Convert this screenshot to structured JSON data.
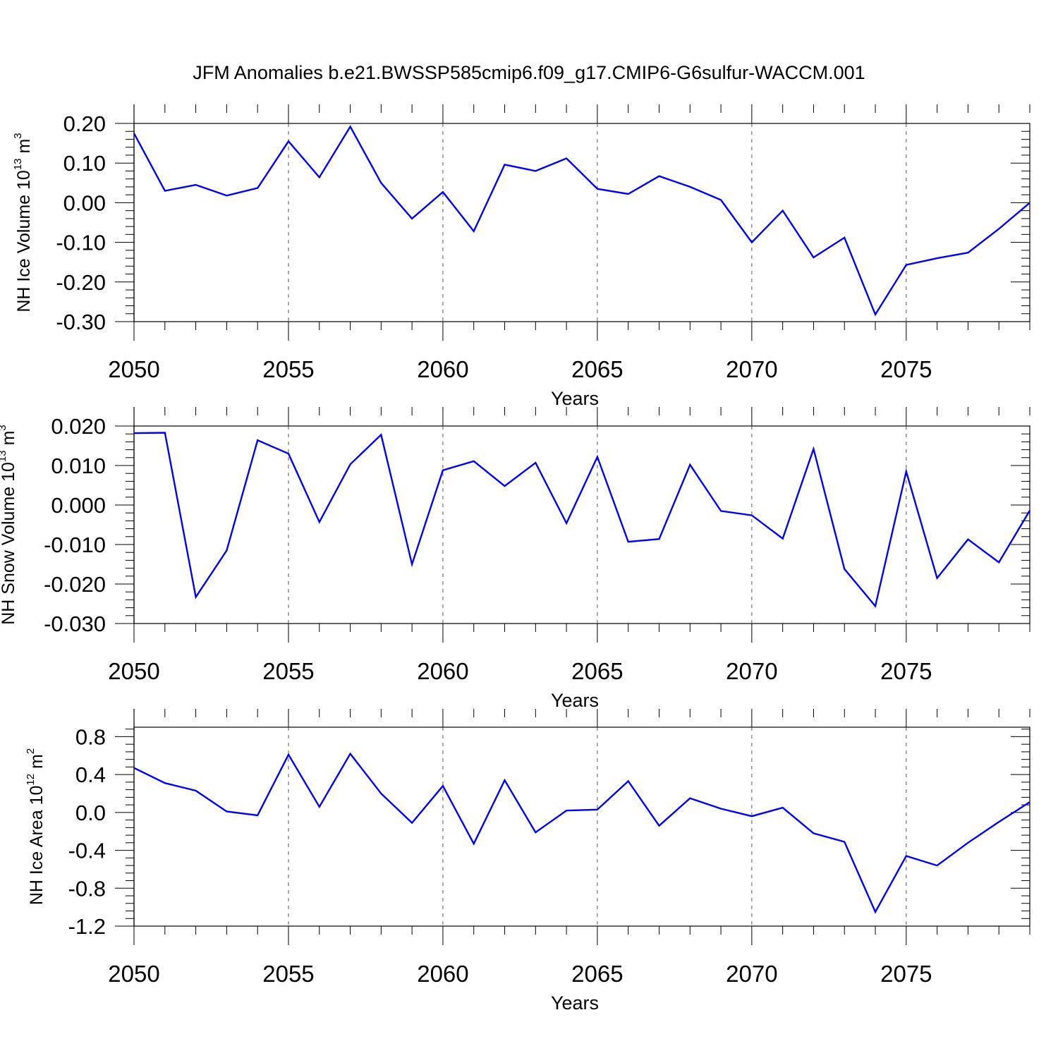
{
  "chart_data": {
    "title": "JFM Anomalies b.e21.BWSSP585cmip6.f09_g17.CMIP6-G6sulfur-WACCM.001",
    "colors": {
      "line": "#0000ff",
      "axes": "#000000",
      "grid": "#555555"
    },
    "grid": "vertical dashed lines at major x ticks",
    "panels": [
      {
        "type": "line",
        "ylabel_main": "NH Ice Volume 10",
        "ylabel_exp": "13",
        "ylabel_unit": " m",
        "ylabel_unit_exp": "3",
        "xlabel": "Years",
        "xlim": [
          2050,
          2079
        ],
        "ylim": [
          -0.3,
          0.2
        ],
        "xticks": [
          "2050",
          "2055",
          "2060",
          "2065",
          "2070",
          "2075"
        ],
        "yticks": [
          "0.20",
          "0.10",
          "0.00",
          "-0.10",
          "-0.20",
          "-0.30"
        ],
        "x": [
          2050,
          2051,
          2052,
          2053,
          2054,
          2055,
          2056,
          2057,
          2058,
          2059,
          2060,
          2061,
          2062,
          2063,
          2064,
          2065,
          2066,
          2067,
          2068,
          2069,
          2070,
          2071,
          2072,
          2073,
          2074,
          2075,
          2076,
          2077,
          2078,
          2079
        ],
        "y": [
          0.175,
          0.03,
          0.045,
          0.018,
          0.037,
          0.155,
          0.064,
          0.192,
          0.05,
          -0.04,
          0.027,
          -0.072,
          0.096,
          0.08,
          0.112,
          0.035,
          0.022,
          0.067,
          0.04,
          0.007,
          -0.1,
          -0.02,
          -0.138,
          -0.088,
          -0.282,
          -0.157,
          -0.14,
          -0.126,
          -0.066,
          0.0
        ]
      },
      {
        "type": "line",
        "ylabel_main": "NH Snow Volume 10",
        "ylabel_exp": "13",
        "ylabel_unit": " m",
        "ylabel_unit_exp": "3",
        "xlabel": "Years",
        "xlim": [
          2050,
          2079
        ],
        "ylim": [
          -0.03,
          0.02
        ],
        "xticks": [
          "2050",
          "2055",
          "2060",
          "2065",
          "2070",
          "2075"
        ],
        "yticks": [
          "0.020",
          "0.010",
          "0.000",
          "-0.010",
          "-0.020",
          "-0.030"
        ],
        "x": [
          2050,
          2051,
          2052,
          2053,
          2054,
          2055,
          2056,
          2057,
          2058,
          2059,
          2060,
          2061,
          2062,
          2063,
          2064,
          2065,
          2066,
          2067,
          2068,
          2069,
          2070,
          2071,
          2072,
          2073,
          2074,
          2075,
          2076,
          2077,
          2078,
          2079
        ],
        "y": [
          0.0182,
          0.0183,
          -0.0233,
          -0.0115,
          0.0164,
          0.013,
          -0.0043,
          0.0103,
          0.0178,
          -0.015,
          0.0088,
          0.0111,
          0.0048,
          0.0107,
          -0.0046,
          0.0122,
          -0.0093,
          -0.0086,
          0.0102,
          -0.0015,
          -0.0026,
          -0.0085,
          0.0142,
          -0.0162,
          -0.0256,
          0.0085,
          -0.0185,
          -0.0087,
          -0.0145,
          -0.0014
        ]
      },
      {
        "type": "line",
        "ylabel_main": "NH Ice Area 10",
        "ylabel_exp": "12",
        "ylabel_unit": " m",
        "ylabel_unit_exp": "2",
        "xlabel": "Years",
        "xlim": [
          2050,
          2079
        ],
        "ylim": [
          -1.2,
          0.9
        ],
        "xticks": [
          "2050",
          "2055",
          "2060",
          "2065",
          "2070",
          "2075"
        ],
        "yticks": [
          "0.8",
          "0.4",
          "0.0",
          "-0.4",
          "-0.8",
          "-1.2"
        ],
        "x": [
          2050,
          2051,
          2052,
          2053,
          2054,
          2055,
          2056,
          2057,
          2058,
          2059,
          2060,
          2061,
          2062,
          2063,
          2064,
          2065,
          2066,
          2067,
          2068,
          2069,
          2070,
          2071,
          2072,
          2073,
          2074,
          2075,
          2076,
          2077,
          2078,
          2079
        ],
        "y": [
          0.47,
          0.31,
          0.23,
          0.01,
          -0.03,
          0.61,
          0.06,
          0.62,
          0.2,
          -0.11,
          0.28,
          -0.33,
          0.34,
          -0.21,
          0.02,
          0.03,
          0.33,
          -0.14,
          0.15,
          0.04,
          -0.04,
          0.05,
          -0.22,
          -0.31,
          -1.05,
          -0.46,
          -0.56,
          -0.32,
          -0.1,
          0.11
        ]
      }
    ]
  }
}
